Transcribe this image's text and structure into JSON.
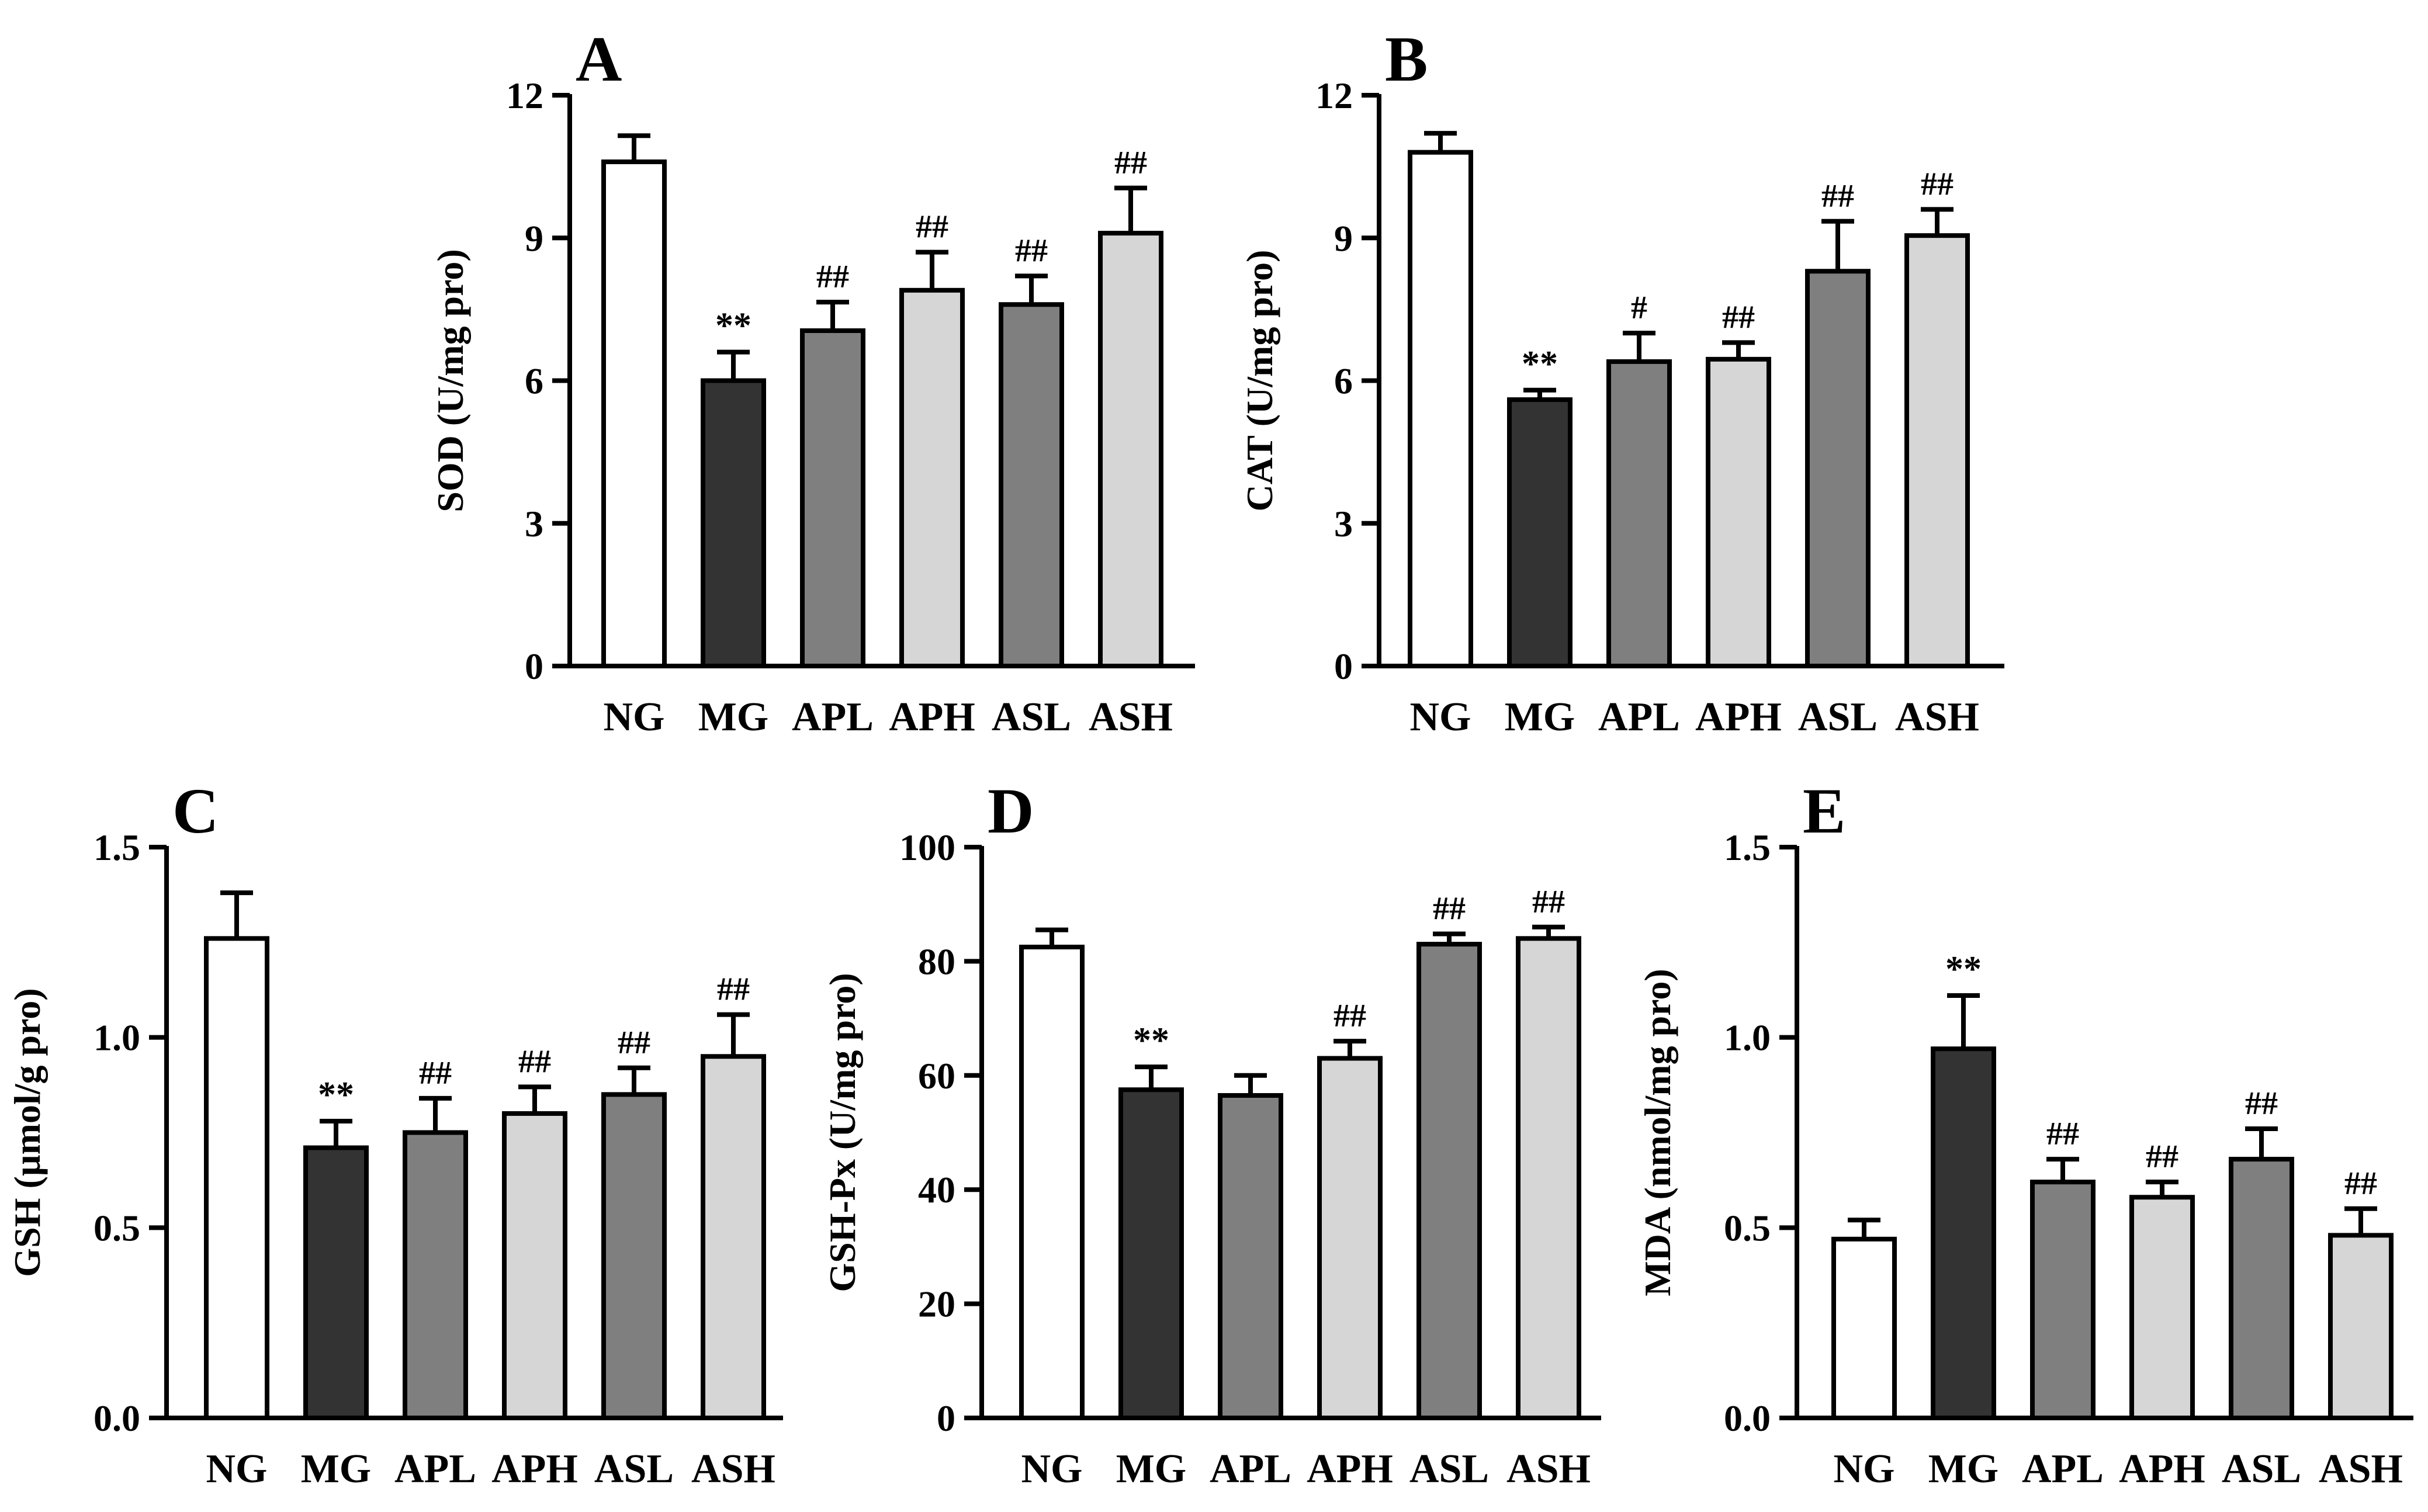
{
  "chart_data": [
    {
      "type": "bar",
      "panel_label": "A",
      "ylabel": "SOD (U/mg pro)",
      "xlabel": "",
      "categories": [
        "NG",
        "MG",
        "APL",
        "APH",
        "ASL",
        "ASH"
      ],
      "values": [
        10.6,
        6.0,
        7.05,
        7.9,
        7.6,
        9.1
      ],
      "errors": [
        0.55,
        0.6,
        0.6,
        0.8,
        0.6,
        0.95
      ],
      "annotations": [
        "",
        "**",
        "##",
        "##",
        "##",
        "##"
      ],
      "ylim": [
        0,
        12
      ],
      "yticks": [
        0,
        3,
        6,
        9,
        12
      ],
      "ytick_labels": [
        "0",
        "3",
        "6",
        "9",
        "12"
      ],
      "grid": false
    },
    {
      "type": "bar",
      "panel_label": "B",
      "ylabel": "CAT (U/mg pro)",
      "xlabel": "",
      "categories": [
        "NG",
        "MG",
        "APL",
        "APH",
        "ASL",
        "ASH"
      ],
      "values": [
        10.8,
        5.6,
        6.4,
        6.45,
        8.3,
        9.05
      ],
      "errors": [
        0.4,
        0.2,
        0.6,
        0.35,
        1.05,
        0.55
      ],
      "annotations": [
        "",
        "**",
        "#",
        "##",
        "##",
        "##"
      ],
      "ylim": [
        0,
        12
      ],
      "yticks": [
        0,
        3,
        6,
        9,
        12
      ],
      "ytick_labels": [
        "0",
        "3",
        "6",
        "9",
        "12"
      ],
      "grid": false
    },
    {
      "type": "bar",
      "panel_label": "C",
      "ylabel": "GSH (µmol/g pro)",
      "xlabel": "",
      "categories": [
        "NG",
        "MG",
        "APL",
        "APH",
        "ASL",
        "ASH"
      ],
      "values": [
        1.26,
        0.71,
        0.75,
        0.8,
        0.85,
        0.95
      ],
      "errors": [
        0.12,
        0.07,
        0.09,
        0.07,
        0.07,
        0.11
      ],
      "annotations": [
        "",
        "**",
        "##",
        "##",
        "##",
        "##"
      ],
      "ylim": [
        0,
        1.5
      ],
      "yticks": [
        0,
        0.5,
        1.0,
        1.5
      ],
      "ytick_labels": [
        "0.0",
        "0.5",
        "1.0",
        "1.5"
      ],
      "grid": false
    },
    {
      "type": "bar",
      "panel_label": "D",
      "ylabel": "GSH-Px (U/mg pro)",
      "xlabel": "",
      "categories": [
        "NG",
        "MG",
        "APL",
        "APH",
        "ASL",
        "ASH"
      ],
      "values": [
        82.5,
        57.5,
        56.5,
        63,
        83,
        84
      ],
      "errors": [
        3,
        4,
        3.5,
        3,
        1.8,
        2
      ],
      "annotations": [
        "",
        "**",
        "",
        "##",
        "##",
        "##"
      ],
      "ylim": [
        0,
        100
      ],
      "yticks": [
        0,
        20,
        40,
        60,
        80,
        100
      ],
      "ytick_labels": [
        "0",
        "20",
        "40",
        "60",
        "80",
        "100"
      ],
      "grid": false
    },
    {
      "type": "bar",
      "panel_label": "E",
      "ylabel": "MDA (nmol/mg pro)",
      "xlabel": "",
      "categories": [
        "NG",
        "MG",
        "APL",
        "APH",
        "ASL",
        "ASH"
      ],
      "values": [
        0.47,
        0.97,
        0.62,
        0.58,
        0.68,
        0.48
      ],
      "errors": [
        0.05,
        0.14,
        0.06,
        0.04,
        0.08,
        0.07
      ],
      "annotations": [
        "",
        "**",
        "##",
        "##",
        "##",
        "##"
      ],
      "ylim": [
        0,
        1.5
      ],
      "yticks": [
        0,
        0.5,
        1.0,
        1.5
      ],
      "ytick_labels": [
        "0.0",
        "0.5",
        "1.0",
        "1.5"
      ],
      "grid": false
    }
  ],
  "colors": {
    "NG": "#ffffff",
    "MG": "#333333",
    "APL": "#7f7f7f",
    "APH": "#d6d6d6",
    "ASL": "#7f7f7f",
    "ASH": "#d6d6d6",
    "stroke": "#000000"
  }
}
